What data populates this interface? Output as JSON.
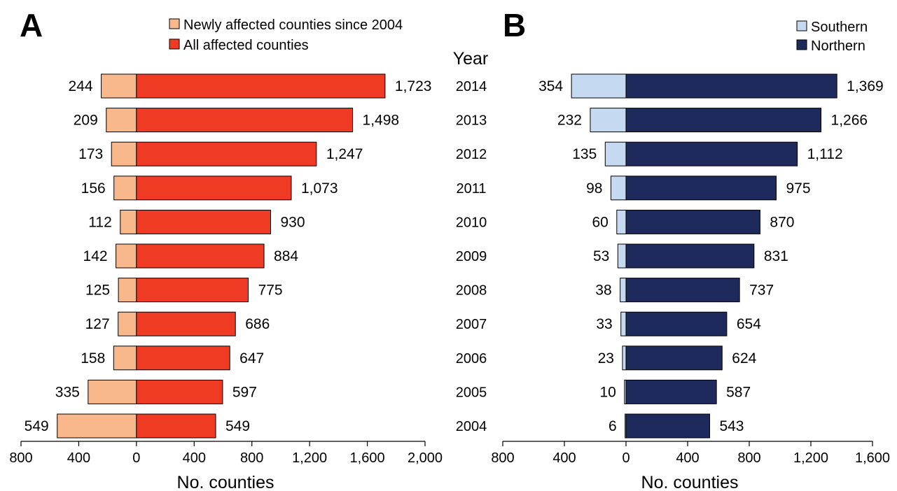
{
  "chart_data": [
    {
      "panel": "A",
      "type": "bar",
      "orientation": "horizontal",
      "categories": [
        "2014",
        "2013",
        "2012",
        "2011",
        "2010",
        "2009",
        "2008",
        "2007",
        "2006",
        "2005",
        "2004"
      ],
      "series": [
        {
          "name": "Newly affected counties since 2004",
          "values": [
            244,
            209,
            173,
            156,
            112,
            142,
            125,
            127,
            158,
            335,
            549
          ],
          "direction": "left",
          "color": "#f8b88b"
        },
        {
          "name": "All affected counties",
          "values": [
            1723,
            1498,
            1247,
            1073,
            930,
            884,
            775,
            686,
            647,
            597,
            549
          ],
          "direction": "right",
          "color": "#ef3b23"
        }
      ],
      "value_labels_left": [
        "244",
        "209",
        "173",
        "156",
        "112",
        "142",
        "125",
        "127",
        "158",
        "335",
        "549"
      ],
      "value_labels_right": [
        "1,723",
        "1,498",
        "1,247",
        "1,073",
        "930",
        "884",
        "775",
        "686",
        "647",
        "597",
        "549"
      ],
      "xlabel": "No. counties",
      "xlim": [
        -800,
        2000
      ],
      "xticks": [
        -800,
        -400,
        0,
        400,
        800,
        1200,
        1600,
        2000
      ],
      "xtick_labels": [
        "800",
        "400",
        "0",
        "400",
        "800",
        "1,200",
        "1,600",
        "2,000"
      ],
      "legend_position": "top-right"
    },
    {
      "panel": "B",
      "type": "bar",
      "orientation": "horizontal",
      "categories": [
        "2014",
        "2013",
        "2012",
        "2011",
        "2010",
        "2009",
        "2008",
        "2007",
        "2006",
        "2005",
        "2004"
      ],
      "series": [
        {
          "name": "Southern",
          "values": [
            354,
            232,
            135,
            98,
            60,
            53,
            38,
            33,
            23,
            10,
            6
          ],
          "direction": "left",
          "color": "#c5d9f1"
        },
        {
          "name": "Northern",
          "values": [
            1369,
            1266,
            1112,
            975,
            870,
            831,
            737,
            654,
            624,
            587,
            543
          ],
          "direction": "right",
          "color": "#1f2a5c"
        }
      ],
      "value_labels_left": [
        "354",
        "232",
        "135",
        "98",
        "60",
        "53",
        "38",
        "33",
        "23",
        "10",
        "6"
      ],
      "value_labels_right": [
        "1,369",
        "1,266",
        "1,112",
        "975",
        "870",
        "831",
        "737",
        "654",
        "624",
        "587",
        "543"
      ],
      "xlabel": "No. counties",
      "xlim": [
        -800,
        1600
      ],
      "xticks": [
        -800,
        -400,
        0,
        400,
        800,
        1200,
        1600
      ],
      "xtick_labels": [
        "800",
        "400",
        "0",
        "400",
        "800",
        "1,200",
        "1,600"
      ],
      "legend_position": "top-right"
    }
  ],
  "year_axis": {
    "header": "Year",
    "years": [
      "2014",
      "2013",
      "2012",
      "2011",
      "2010",
      "2009",
      "2008",
      "2007",
      "2006",
      "2005",
      "2004"
    ]
  }
}
